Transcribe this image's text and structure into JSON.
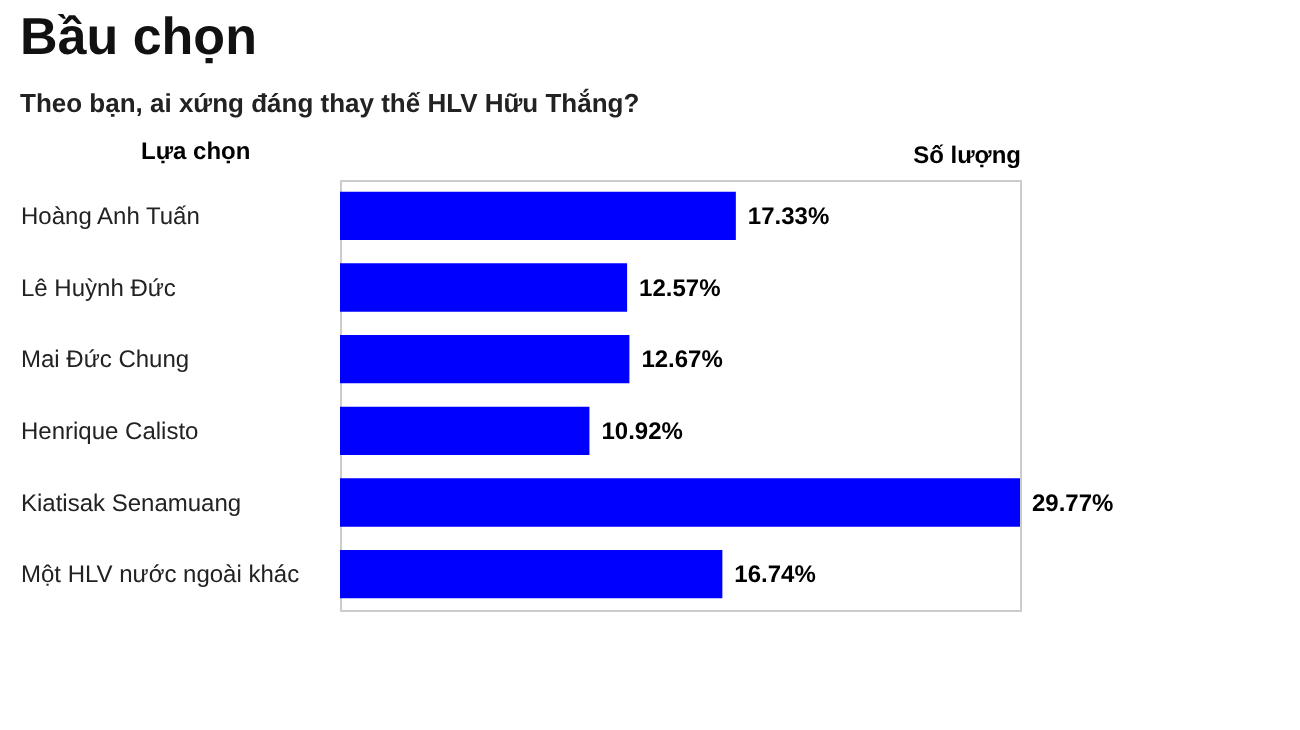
{
  "chart_data": {
    "type": "bar",
    "orientation": "horizontal",
    "title": "Bầu chọn",
    "subtitle": "Theo bạn, ai xứng đáng thay thế HLV Hữu Thắng?",
    "ylabel": "Lựa chọn",
    "xlabel": "Số lượng",
    "categories": [
      "Hoàng Anh Tuấn",
      "Lê Huỳnh Đức",
      "Mai Đức Chung",
      "Henrique Calisto",
      "Kiatisak Senamuang",
      "Một HLV nước ngoài khác"
    ],
    "values": [
      17.33,
      12.57,
      12.67,
      10.92,
      29.77,
      16.74
    ],
    "value_labels": [
      "17.33%",
      "12.57%",
      "12.67%",
      "10.92%",
      "29.77%",
      "16.74%"
    ],
    "color": "#0000ff",
    "tick_labels": "y"
  }
}
